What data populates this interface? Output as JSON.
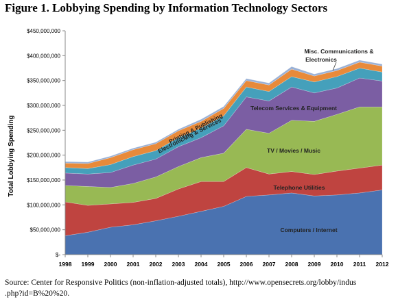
{
  "title": "Figure 1. Lobbying Spending by Information Technology Sectors",
  "source": {
    "line1": "Source: Center for Responsive Politics (non-inflation-adjusted totals), http://www.opensecrets.org/lobby/indus",
    "line2": ".php?id=B%20%20."
  },
  "chart_data": {
    "type": "area",
    "stacked": true,
    "ylabel": "Total Lobbying Spending",
    "ylim": [
      0,
      450000000
    ],
    "y_ticks": [
      0,
      50000000,
      100000000,
      150000000,
      200000000,
      250000000,
      300000000,
      350000000,
      400000000,
      450000000
    ],
    "y_tick_labels": [
      "$-",
      "$50,000,000",
      "$100,000,000",
      "$150,000,000",
      "$200,000,000",
      "$250,000,000",
      "$300,000,000",
      "$350,000,000",
      "$400,000,000",
      "$450,000,000"
    ],
    "x": [
      "1998",
      "1999",
      "2000",
      "2001",
      "2002",
      "2003",
      "2004",
      "2005",
      "2006",
      "2007",
      "2008",
      "2009",
      "2010",
      "2011",
      "2012"
    ],
    "grid": false,
    "series": [
      {
        "name": "Computers / Internet",
        "color": "#4a72b0",
        "values": [
          38000000,
          45000000,
          55000000,
          60000000,
          68000000,
          77000000,
          87000000,
          97000000,
          117000000,
          120000000,
          124000000,
          118000000,
          120000000,
          124000000,
          130000000
        ]
      },
      {
        "name": "Telephone Utilities",
        "color": "#bf4440",
        "values": [
          68000000,
          54000000,
          47000000,
          45000000,
          45000000,
          55000000,
          60000000,
          50000000,
          58000000,
          42000000,
          43000000,
          43000000,
          48000000,
          50000000,
          50000000
        ]
      },
      {
        "name": "TV / Movies / Music",
        "color": "#98b954",
        "values": [
          33000000,
          38000000,
          33000000,
          38000000,
          43000000,
          45000000,
          48000000,
          57000000,
          77000000,
          82000000,
          103000000,
          107000000,
          114000000,
          123000000,
          117000000
        ]
      },
      {
        "name": "Telecom Services & Equipment",
        "color": "#7b5ea3",
        "values": [
          25000000,
          25000000,
          30000000,
          37000000,
          36000000,
          40000000,
          40000000,
          55000000,
          65000000,
          65000000,
          67000000,
          57000000,
          53000000,
          58000000,
          52000000
        ]
      },
      {
        "name": "Electronic Mfg & Services",
        "color": "#45a0bb",
        "values": [
          11000000,
          11000000,
          16000000,
          17000000,
          17000000,
          18000000,
          19000000,
          20000000,
          20000000,
          19000000,
          21000000,
          22000000,
          23000000,
          20000000,
          18000000
        ]
      },
      {
        "name": "Printing & Publishing",
        "color": "#e88a3a",
        "values": [
          9000000,
          10000000,
          14000000,
          14000000,
          14000000,
          14000000,
          14000000,
          15000000,
          13000000,
          13000000,
          15000000,
          12000000,
          12000000,
          12000000,
          12000000
        ]
      },
      {
        "name": "Misc. Communications & Electronics",
        "color": "#9ab1d6",
        "values": [
          3000000,
          3000000,
          3000000,
          3000000,
          3000000,
          3000000,
          4000000,
          4000000,
          4000000,
          4000000,
          5000000,
          4000000,
          4000000,
          4000000,
          4000000
        ]
      }
    ],
    "annotations": {
      "computers": "Computers / Internet",
      "telephone": "Telephone Utilities",
      "tv": "TV / Movies / Music",
      "telecom": "Telecom Services & Equipment",
      "electronic": "ElectronicMfg & Services",
      "printing": "Printing & Publishing",
      "misc_line1": "Misc. Communications &",
      "misc_line2": "Electronics"
    }
  }
}
